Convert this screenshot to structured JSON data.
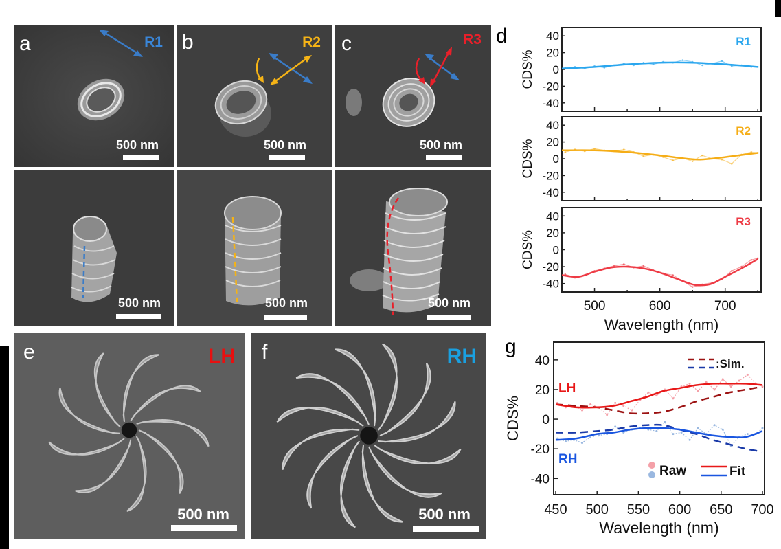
{
  "figure": {
    "panels": {
      "a": {
        "letter": "a",
        "tag": "R1",
        "tag_color": "#3a86d8",
        "scale_top": "500 nm",
        "scale_bottom": "500 nm"
      },
      "b": {
        "letter": "b",
        "tag": "R2",
        "tag_color": "#f5b316",
        "scale_top": "500 nm",
        "scale_bottom": "500 nm"
      },
      "c": {
        "letter": "c",
        "tag": "R3",
        "tag_color": "#e8202a",
        "scale_top": "500 nm",
        "scale_bottom": "500 nm"
      },
      "d": {
        "letter": "d"
      },
      "e": {
        "letter": "e",
        "tag": "LH",
        "tag_color": "#e81010",
        "scale": "500 nm"
      },
      "f": {
        "letter": "f",
        "tag": "RH",
        "tag_color": "#1aa0e0",
        "scale": "500 nm"
      },
      "g": {
        "letter": "g"
      }
    },
    "colors": {
      "polarization_arrow": "#3a7cc8",
      "R1": "#2aa6ee",
      "R2": "#f5ad16",
      "R3": "#ee3b45",
      "LH_fit": "#e81818",
      "LH_sim": "#9c1212",
      "RH_fit": "#1a56e0",
      "RH_sim": "#1a3aa8",
      "LH_raw": "#f4a0a8",
      "RH_raw": "#9ab8e0"
    }
  },
  "chart_data": [
    {
      "id": "d-R1",
      "type": "line",
      "title": "R1",
      "xlabel": "",
      "ylabel": "CDS%",
      "xlim": [
        450,
        755
      ],
      "ylim": [
        -50,
        50
      ],
      "yticks": [
        40,
        20,
        0,
        -20,
        -40
      ],
      "xticks": [
        500,
        600,
        700
      ],
      "series": [
        {
          "name": "Fit",
          "x": [
            450,
            500,
            550,
            600,
            650,
            700,
            750
          ],
          "values": [
            1,
            3,
            6,
            8,
            8,
            6,
            3
          ]
        },
        {
          "name": "Raw",
          "x": [
            455,
            470,
            485,
            500,
            515,
            530,
            545,
            560,
            575,
            590,
            605,
            620,
            635,
            650,
            665,
            680,
            695,
            710,
            725,
            740,
            750
          ],
          "values": [
            2,
            3,
            1,
            4,
            2,
            5,
            7,
            5,
            8,
            6,
            9,
            8,
            11,
            9,
            5,
            7,
            10,
            4,
            5,
            3,
            3
          ]
        }
      ]
    },
    {
      "id": "d-R2",
      "type": "line",
      "title": "R2",
      "xlabel": "",
      "ylabel": "CDS%",
      "xlim": [
        450,
        755
      ],
      "ylim": [
        -50,
        50
      ],
      "yticks": [
        40,
        20,
        0,
        -20,
        -40
      ],
      "xticks": [
        500,
        600,
        700
      ],
      "series": [
        {
          "name": "Fit",
          "x": [
            450,
            500,
            550,
            600,
            630,
            660,
            690,
            720,
            750
          ],
          "values": [
            10,
            10,
            8,
            4,
            1,
            -1,
            1,
            4,
            7
          ]
        },
        {
          "name": "Raw",
          "x": [
            455,
            470,
            485,
            500,
            515,
            530,
            545,
            560,
            575,
            590,
            605,
            620,
            635,
            650,
            665,
            680,
            695,
            710,
            725,
            740,
            750
          ],
          "values": [
            8,
            11,
            9,
            12,
            10,
            9,
            11,
            8,
            3,
            5,
            2,
            -2,
            1,
            -3,
            4,
            0,
            -1,
            -6,
            5,
            8,
            7
          ]
        }
      ]
    },
    {
      "id": "d-R3",
      "type": "line",
      "title": "R3",
      "xlabel": "Wavelength (nm)",
      "ylabel": "CDS%",
      "xlim": [
        450,
        755
      ],
      "ylim": [
        -50,
        50
      ],
      "yticks": [
        40,
        20,
        0,
        -20,
        -40
      ],
      "xticks": [
        500,
        600,
        700
      ],
      "series": [
        {
          "name": "Fit",
          "x": [
            450,
            475,
            500,
            525,
            550,
            575,
            600,
            625,
            650,
            665,
            680,
            700,
            725,
            750
          ],
          "values": [
            -30,
            -32,
            -26,
            -21,
            -20,
            -22,
            -27,
            -34,
            -41,
            -42,
            -40,
            -32,
            -22,
            -11
          ]
        },
        {
          "name": "Raw",
          "x": [
            455,
            470,
            485,
            500,
            515,
            530,
            545,
            560,
            575,
            590,
            605,
            620,
            635,
            650,
            665,
            680,
            695,
            710,
            725,
            740,
            750
          ],
          "values": [
            -29,
            -33,
            -30,
            -25,
            -22,
            -19,
            -17,
            -21,
            -19,
            -24,
            -28,
            -30,
            -37,
            -44,
            -41,
            -39,
            -35,
            -25,
            -20,
            -12,
            -10
          ]
        }
      ]
    },
    {
      "id": "g",
      "type": "line",
      "title": "",
      "xlabel": "Wavelength (nm)",
      "ylabel": "CDS%",
      "xlim": [
        450,
        700
      ],
      "ylim": [
        -51,
        52
      ],
      "yticks": [
        40,
        20,
        0,
        -20,
        -40
      ],
      "xticks": [
        450,
        500,
        550,
        600,
        650,
        700
      ],
      "annotations": [
        "LH",
        "RH"
      ],
      "legend": {
        "sim_label": "Sim.",
        "raw_label": "Raw",
        "fit_label": "Fit",
        "placement": "top-right / bottom-right"
      },
      "series": [
        {
          "name": "LH Fit",
          "x": [
            450,
            475,
            500,
            520,
            540,
            560,
            580,
            600,
            620,
            640,
            660,
            680,
            700
          ],
          "values": [
            10,
            8,
            8,
            9,
            12,
            15,
            19,
            21,
            23,
            24,
            24,
            24,
            23
          ]
        },
        {
          "name": "LH Sim.",
          "x": [
            450,
            475,
            500,
            520,
            540,
            560,
            580,
            600,
            620,
            640,
            660,
            680,
            700
          ],
          "values": [
            10,
            9,
            8,
            6,
            4,
            4,
            5,
            8,
            12,
            15,
            18,
            20,
            22
          ]
        },
        {
          "name": "LH Raw",
          "x": [
            452,
            462,
            472,
            482,
            492,
            502,
            512,
            522,
            532,
            542,
            552,
            562,
            572,
            582,
            592,
            602,
            612,
            622,
            632,
            642,
            652,
            662,
            672,
            682,
            692,
            700
          ],
          "values": [
            11,
            8,
            9,
            6,
            10,
            8,
            3,
            11,
            9,
            6,
            13,
            18,
            16,
            20,
            14,
            22,
            24,
            19,
            25,
            20,
            27,
            22,
            26,
            30,
            24,
            22
          ]
        },
        {
          "name": "RH Fit",
          "x": [
            450,
            475,
            500,
            520,
            540,
            560,
            580,
            600,
            620,
            640,
            660,
            680,
            700
          ],
          "values": [
            -14,
            -13,
            -10,
            -9,
            -7,
            -6,
            -6,
            -7,
            -9,
            -11,
            -12,
            -12,
            -8
          ]
        },
        {
          "name": "RH Sim.",
          "x": [
            450,
            475,
            500,
            520,
            540,
            560,
            580,
            600,
            620,
            640,
            660,
            680,
            700
          ],
          "values": [
            -9,
            -9,
            -8,
            -7,
            -5,
            -4,
            -4,
            -7,
            -10,
            -14,
            -17,
            -20,
            -22
          ]
        },
        {
          "name": "RH Raw",
          "x": [
            452,
            462,
            472,
            482,
            492,
            502,
            512,
            522,
            532,
            542,
            552,
            562,
            572,
            582,
            592,
            602,
            612,
            622,
            632,
            642,
            652,
            662,
            672,
            682,
            692,
            700
          ],
          "values": [
            -13,
            -15,
            -14,
            -16,
            -12,
            -11,
            -10,
            -5,
            -9,
            -7,
            -6,
            -7,
            -8,
            -2,
            -10,
            -9,
            -14,
            -6,
            -10,
            -4,
            -7,
            -18,
            -12,
            -10,
            -10,
            -6
          ]
        }
      ]
    }
  ]
}
